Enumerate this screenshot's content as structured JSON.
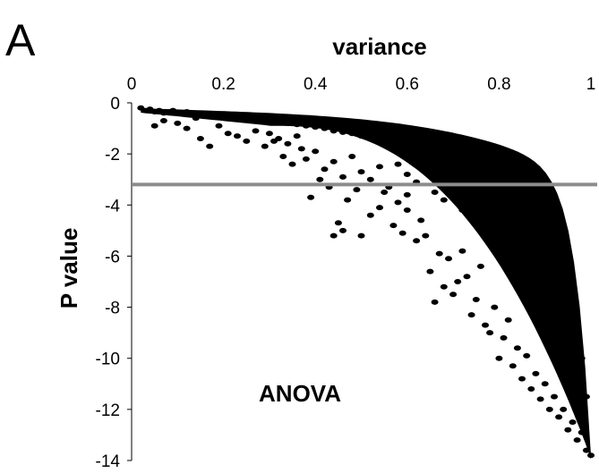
{
  "panel_label": "A",
  "chart_data": {
    "type": "scatter",
    "title": "",
    "xlabel": "variance",
    "ylabel": "P value",
    "xlim": [
      0,
      1
    ],
    "ylim": [
      -14,
      0
    ],
    "x_axis_position": "top",
    "x_ticks": [
      "0",
      "0.2",
      "0.4",
      "0.6",
      "0.8",
      "1"
    ],
    "y_ticks": [
      "0",
      "-2",
      "-4",
      "-6",
      "-8",
      "-10",
      "-12",
      "-14"
    ],
    "grid": false,
    "legend": "none",
    "point_color": "#000000",
    "threshold_line": {
      "y": -3.2,
      "color": "#8c8c8c"
    },
    "annotation": "ANOVA",
    "series": [
      {
        "points": [
          [
            0.02,
            -0.2
          ],
          [
            0.03,
            -0.3
          ],
          [
            0.04,
            -0.25
          ],
          [
            0.05,
            -0.35
          ],
          [
            0.06,
            -0.3
          ],
          [
            0.07,
            -0.4
          ],
          [
            0.08,
            -0.35
          ],
          [
            0.09,
            -0.3
          ],
          [
            0.1,
            -0.4
          ],
          [
            0.12,
            -0.35
          ],
          [
            0.14,
            -0.4
          ],
          [
            0.16,
            -0.45
          ],
          [
            0.18,
            -0.45
          ],
          [
            0.2,
            -0.5
          ],
          [
            0.22,
            -0.55
          ],
          [
            0.24,
            -0.55
          ],
          [
            0.26,
            -0.6
          ],
          [
            0.28,
            -0.65
          ],
          [
            0.3,
            -0.7
          ],
          [
            0.32,
            -0.75
          ],
          [
            0.34,
            -0.8
          ],
          [
            0.36,
            -0.85
          ],
          [
            0.38,
            -0.9
          ],
          [
            0.4,
            -0.95
          ],
          [
            0.42,
            -1.0
          ],
          [
            0.44,
            -1.1
          ],
          [
            0.46,
            -1.15
          ],
          [
            0.48,
            -1.2
          ],
          [
            0.5,
            -1.3
          ],
          [
            0.52,
            -1.35
          ],
          [
            0.54,
            -1.45
          ],
          [
            0.56,
            -1.55
          ],
          [
            0.58,
            -1.65
          ],
          [
            0.6,
            -1.75
          ],
          [
            0.62,
            -1.9
          ],
          [
            0.64,
            -2.0
          ],
          [
            0.66,
            -2.15
          ],
          [
            0.68,
            -2.3
          ],
          [
            0.7,
            -2.5
          ],
          [
            0.72,
            -2.7
          ],
          [
            0.74,
            -2.9
          ],
          [
            0.76,
            -3.1
          ],
          [
            0.78,
            -3.4
          ],
          [
            0.8,
            -3.7
          ],
          [
            0.82,
            -4.0
          ],
          [
            0.84,
            -4.4
          ],
          [
            0.86,
            -4.8
          ],
          [
            0.88,
            -5.3
          ],
          [
            0.9,
            -5.8
          ],
          [
            0.92,
            -6.5
          ],
          [
            0.94,
            -7.3
          ],
          [
            0.96,
            -8.3
          ],
          [
            0.97,
            -9.0
          ],
          [
            0.98,
            -10.0
          ],
          [
            0.99,
            -11.5
          ],
          [
            1.0,
            -13.8
          ],
          [
            0.05,
            -0.9
          ],
          [
            0.07,
            -0.7
          ],
          [
            0.1,
            -0.8
          ],
          [
            0.12,
            -1.0
          ],
          [
            0.14,
            -0.6
          ],
          [
            0.15,
            -1.4
          ],
          [
            0.17,
            -1.7
          ],
          [
            0.19,
            -0.9
          ],
          [
            0.21,
            -1.2
          ],
          [
            0.23,
            -1.3
          ],
          [
            0.25,
            -1.5
          ],
          [
            0.27,
            -1.1
          ],
          [
            0.29,
            -1.7
          ],
          [
            0.31,
            -1.5
          ],
          [
            0.33,
            -2.1
          ],
          [
            0.35,
            -2.4
          ],
          [
            0.37,
            -1.8
          ],
          [
            0.39,
            -3.7
          ],
          [
            0.41,
            -3.0
          ],
          [
            0.43,
            -3.3
          ],
          [
            0.44,
            -5.2
          ],
          [
            0.45,
            -4.7
          ],
          [
            0.46,
            -5.0
          ],
          [
            0.47,
            -3.8
          ],
          [
            0.5,
            -5.2
          ],
          [
            0.49,
            -3.4
          ],
          [
            0.52,
            -4.4
          ],
          [
            0.54,
            -4.1
          ],
          [
            0.55,
            -3.5
          ],
          [
            0.57,
            -4.8
          ],
          [
            0.59,
            -5.1
          ],
          [
            0.6,
            -4.2
          ],
          [
            0.62,
            -5.4
          ],
          [
            0.63,
            -4.6
          ],
          [
            0.64,
            -5.2
          ],
          [
            0.66,
            -7.8
          ],
          [
            0.65,
            -6.6
          ],
          [
            0.67,
            -5.9
          ],
          [
            0.68,
            -7.2
          ],
          [
            0.69,
            -6.1
          ],
          [
            0.7,
            -7.5
          ],
          [
            0.71,
            -7.0
          ],
          [
            0.72,
            -5.8
          ],
          [
            0.73,
            -6.8
          ],
          [
            0.74,
            -8.3
          ],
          [
            0.75,
            -7.7
          ],
          [
            0.76,
            -6.4
          ],
          [
            0.77,
            -8.7
          ],
          [
            0.78,
            -9.0
          ],
          [
            0.79,
            -8.0
          ],
          [
            0.8,
            -10.0
          ],
          [
            0.81,
            -9.2
          ],
          [
            0.82,
            -8.5
          ],
          [
            0.83,
            -10.3
          ],
          [
            0.84,
            -9.6
          ],
          [
            0.85,
            -10.8
          ],
          [
            0.86,
            -9.9
          ],
          [
            0.87,
            -11.2
          ],
          [
            0.88,
            -10.6
          ],
          [
            0.89,
            -11.6
          ],
          [
            0.9,
            -11.0
          ],
          [
            0.91,
            -12.0
          ],
          [
            0.92,
            -11.5
          ],
          [
            0.93,
            -12.3
          ],
          [
            0.94,
            -12.0
          ],
          [
            0.95,
            -12.8
          ],
          [
            0.96,
            -12.5
          ],
          [
            0.97,
            -13.2
          ],
          [
            0.98,
            -12.9
          ],
          [
            0.99,
            -13.6
          ],
          [
            0.58,
            -2.4
          ],
          [
            0.6,
            -2.8
          ],
          [
            0.62,
            -3.1
          ],
          [
            0.64,
            -2.6
          ],
          [
            0.66,
            -3.5
          ],
          [
            0.68,
            -3.8
          ],
          [
            0.7,
            -3.3
          ],
          [
            0.72,
            -4.2
          ],
          [
            0.74,
            -3.7
          ],
          [
            0.76,
            -4.5
          ],
          [
            0.78,
            -5.0
          ],
          [
            0.8,
            -5.5
          ],
          [
            0.82,
            -6.0
          ],
          [
            0.84,
            -6.5
          ],
          [
            0.86,
            -7.1
          ],
          [
            0.88,
            -7.6
          ],
          [
            0.9,
            -8.2
          ],
          [
            0.92,
            -8.8
          ],
          [
            0.94,
            -9.4
          ],
          [
            0.96,
            -10.2
          ],
          [
            0.98,
            -11.1
          ],
          [
            0.3,
            -1.2
          ],
          [
            0.32,
            -1.4
          ],
          [
            0.34,
            -1.6
          ],
          [
            0.36,
            -1.3
          ],
          [
            0.38,
            -2.2
          ],
          [
            0.4,
            -1.9
          ],
          [
            0.42,
            -2.6
          ],
          [
            0.44,
            -2.3
          ],
          [
            0.46,
            -2.9
          ],
          [
            0.48,
            -2.1
          ],
          [
            0.5,
            -2.7
          ],
          [
            0.52,
            -3.0
          ],
          [
            0.54,
            -2.5
          ],
          [
            0.56,
            -3.3
          ],
          [
            0.58,
            -3.9
          ],
          [
            0.6,
            -3.6
          ]
        ]
      }
    ]
  }
}
